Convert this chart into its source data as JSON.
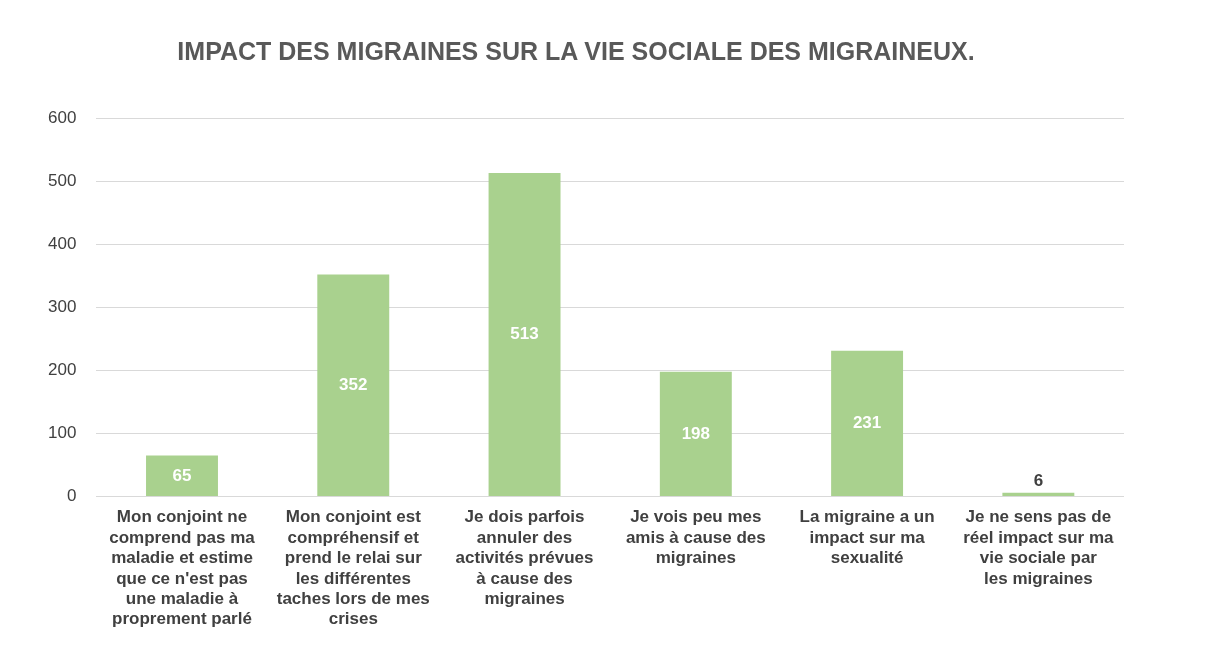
{
  "chart_data": {
    "type": "bar",
    "title": "IMPACT DES MIGRAINES SUR LA VIE SOCIALE DES MIGRAINEUX.",
    "categories": [
      "Mon conjoint ne comprend pas ma maladie et estime que ce n'est pas une maladie à proprement parlé",
      "Mon conjoint est compréhensif et prend le relai sur les différentes taches lors de mes crises",
      "Je dois parfois annuler des activités prévues à cause des migraines",
      "Je vois peu mes amis à cause des migraines",
      "La migraine a un impact sur ma sexualité",
      "Je ne sens pas de réel impact sur ma vie sociale par les migraines"
    ],
    "values": [
      65,
      352,
      513,
      198,
      231,
      6
    ],
    "color": "#a9d18e",
    "ylim": [
      0,
      600
    ],
    "yticks": [
      0,
      100,
      200,
      300,
      400,
      500,
      600
    ],
    "grid": true,
    "data_labels": true,
    "legend": false
  }
}
